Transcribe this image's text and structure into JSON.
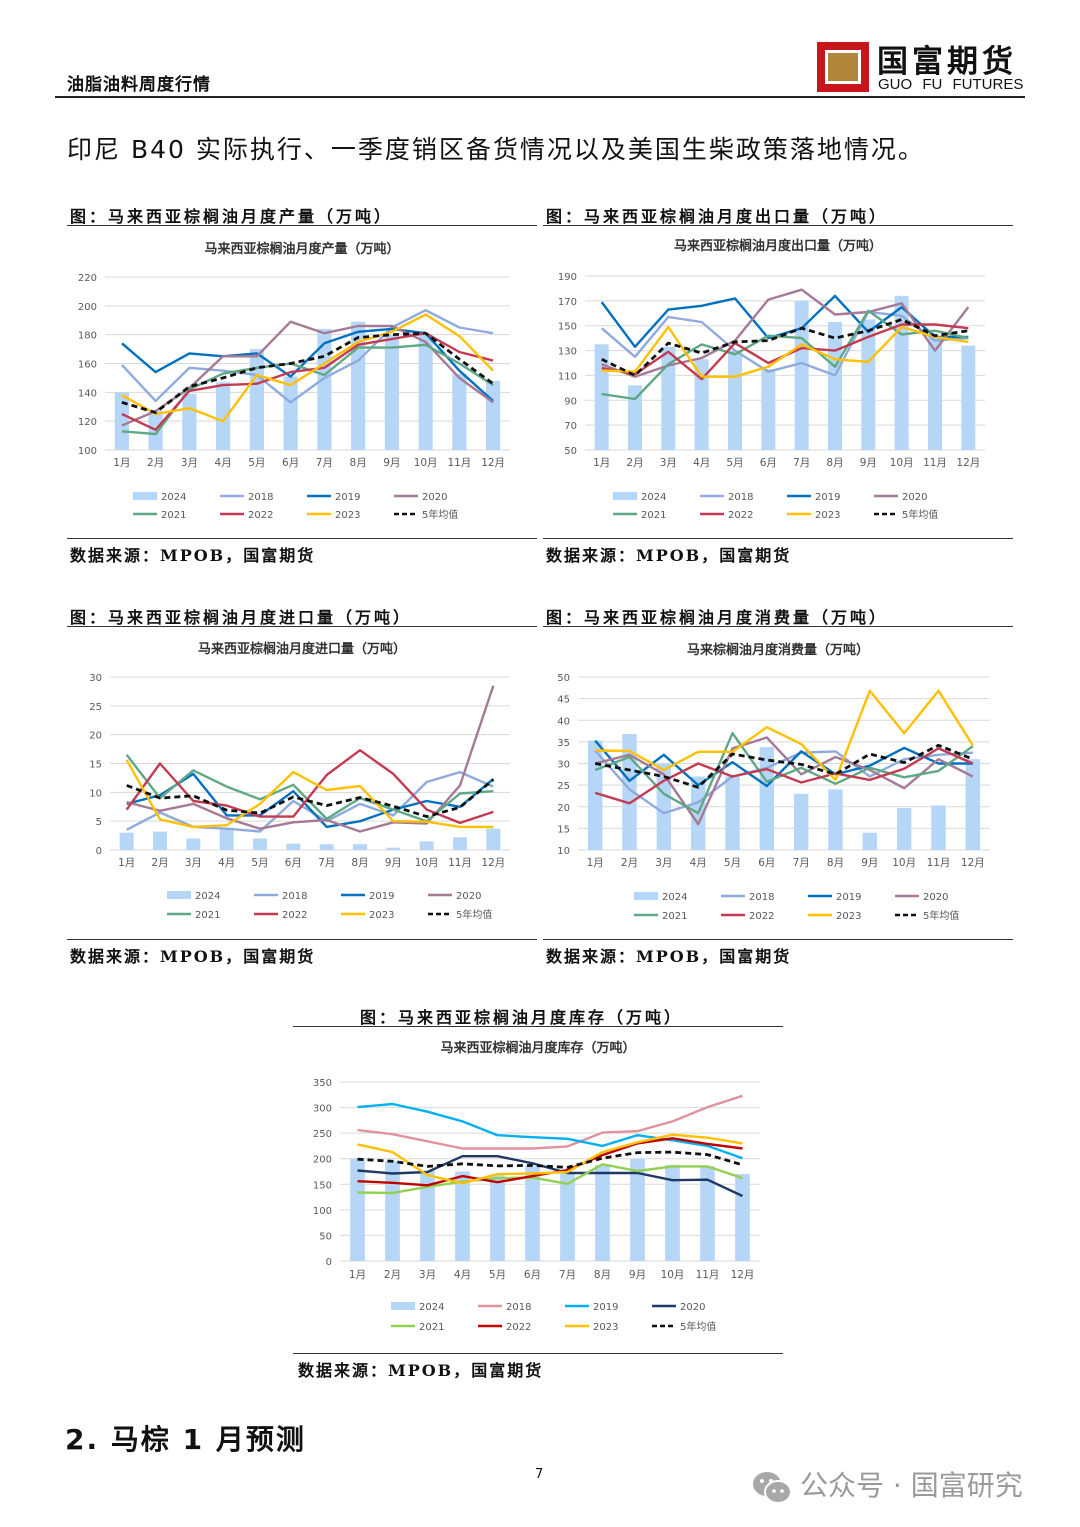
{
  "header": {
    "title": "油脂油料周度行情",
    "logo_cn": "国富期货",
    "logo_en": "GUO  FU  FUTURES"
  },
  "intro_text": "印尼 B40 实际执行、一季度销区备货情况以及美国生柴政策落地情况。",
  "figures": [
    {
      "caption": "图：马来西亚棕榈油月度产量（万吨）",
      "source": "数据来源：MPOB，国富期货"
    },
    {
      "caption": "图：马来西亚棕榈油月度出口量（万吨）",
      "source": "数据来源：MPOB，国富期货"
    },
    {
      "caption": "图：马来西亚棕榈油月度进口量（万吨）",
      "source": "数据来源：MPOB，国富期货"
    },
    {
      "caption": "图：马来西亚棕榈油月度消费量（万吨）",
      "source": "数据来源：MPOB，国富期货"
    },
    {
      "caption": "图：马来西亚棕榈油月度库存（万吨）",
      "source": "数据来源：MPOB，国富期货"
    }
  ],
  "chart_data": [
    {
      "type": "bar+line",
      "title": "马来西亚棕榈油月度产量（万吨）",
      "categories": [
        "1月",
        "2月",
        "3月",
        "4月",
        "5月",
        "6月",
        "7月",
        "8月",
        "9月",
        "10月",
        "11月",
        "12月"
      ],
      "ylim": [
        100,
        220
      ],
      "yticks": [
        100,
        120,
        140,
        160,
        180,
        200,
        220
      ],
      "grid": true,
      "legend": "bottom",
      "colors": {
        "2024": "#b6d6f8",
        "2018": "#8faadc",
        "2019": "#0070c0",
        "2020": "#a57a96",
        "2021": "#5ea884",
        "2022": "#c33b52",
        "2023": "#ffc000",
        "5年均值": "#111111"
      },
      "series": [
        {
          "name": "2024",
          "kind": "bar",
          "values": [
            140,
            127,
            139,
            147,
            170,
            151,
            184,
            189,
            180,
            180,
            153,
            148
          ]
        },
        {
          "name": "2018",
          "kind": "line",
          "values": [
            159,
            134,
            157,
            155,
            152,
            133,
            150,
            162,
            185,
            197,
            185,
            181
          ]
        },
        {
          "name": "2019",
          "kind": "line",
          "values": [
            174,
            154,
            167,
            165,
            167,
            151,
            174,
            182,
            184,
            181,
            155,
            134
          ]
        },
        {
          "name": "2020",
          "kind": "line",
          "values": [
            117,
            127,
            143,
            165,
            165,
            189,
            181,
            186,
            186,
            175,
            150,
            133
          ]
        },
        {
          "name": "2021",
          "kind": "line",
          "values": [
            113,
            111,
            142,
            153,
            157,
            160,
            152,
            171,
            171,
            173,
            160,
            145
          ]
        },
        {
          "name": "2022",
          "kind": "line",
          "values": [
            125,
            114,
            141,
            145,
            146,
            154,
            157,
            173,
            177,
            181,
            168,
            162
          ]
        },
        {
          "name": "2023",
          "kind": "line",
          "values": [
            138,
            125,
            129,
            120,
            152,
            145,
            160,
            175,
            182,
            194,
            179,
            155
          ]
        },
        {
          "name": "5年均值",
          "kind": "dashed",
          "values": [
            133,
            126,
            144,
            150,
            157,
            160,
            165,
            178,
            180,
            181,
            163,
            146
          ]
        }
      ]
    },
    {
      "type": "bar+line",
      "title": "马来西亚棕榈油月度出口量（万吨）",
      "categories": [
        "1月",
        "2月",
        "3月",
        "4月",
        "5月",
        "6月",
        "7月",
        "8月",
        "9月",
        "10月",
        "11月",
        "12月"
      ],
      "ylim": [
        50,
        190
      ],
      "yticks": [
        50,
        70,
        90,
        110,
        130,
        150,
        170,
        190
      ],
      "grid": true,
      "legend": "bottom",
      "colors": {
        "2024": "#b6d6f8",
        "2018": "#8faadc",
        "2019": "#0070c0",
        "2020": "#a57a96",
        "2021": "#5ea884",
        "2022": "#c33b52",
        "2023": "#ffc000",
        "5年均值": "#111111"
      },
      "series": [
        {
          "name": "2024",
          "kind": "bar",
          "values": [
            135,
            102,
            133,
            123,
            130,
            115,
            170,
            153,
            155,
            174,
            140,
            134
          ]
        },
        {
          "name": "2018",
          "kind": "line",
          "values": [
            148,
            125,
            157,
            153,
            130,
            113,
            120,
            110,
            161,
            158,
            138,
            140
          ]
        },
        {
          "name": "2019",
          "kind": "line",
          "values": [
            169,
            133,
            163,
            166,
            172,
            140,
            148,
            174,
            145,
            165,
            141,
            141
          ]
        },
        {
          "name": "2020",
          "kind": "line",
          "values": [
            119,
            109,
            118,
            124,
            138,
            171,
            179,
            159,
            161,
            168,
            130,
            165
          ]
        },
        {
          "name": "2021",
          "kind": "line",
          "values": [
            95,
            91,
            119,
            135,
            127,
            142,
            140,
            117,
            162,
            143,
            146,
            140
          ]
        },
        {
          "name": "2022",
          "kind": "line",
          "values": [
            116,
            111,
            129,
            107,
            136,
            120,
            132,
            130,
            141,
            151,
            151,
            148
          ]
        },
        {
          "name": "2023",
          "kind": "line",
          "values": [
            114,
            113,
            149,
            109,
            109,
            117,
            135,
            123,
            121,
            149,
            141,
            137
          ]
        },
        {
          "name": "5年均值",
          "kind": "dashed",
          "values": [
            123,
            110,
            136,
            128,
            137,
            138,
            148,
            140,
            146,
            155,
            142,
            146
          ]
        }
      ]
    },
    {
      "type": "bar+line",
      "title": "马来西亚棕榈油月度进口量（万吨）",
      "categories": [
        "1月",
        "2月",
        "3月",
        "4月",
        "5月",
        "6月",
        "7月",
        "8月",
        "9月",
        "10月",
        "11月",
        "12月"
      ],
      "ylim": [
        0,
        30
      ],
      "yticks": [
        0,
        5,
        10,
        15,
        20,
        25,
        30
      ],
      "grid": true,
      "legend": "bottom",
      "colors": {
        "2024": "#b6d6f8",
        "2018": "#8faadc",
        "2019": "#0070c0",
        "2020": "#a57a96",
        "2021": "#5ea884",
        "2022": "#c33b52",
        "2023": "#ffc000",
        "5年均值": "#111111"
      },
      "series": [
        {
          "name": "2024",
          "kind": "bar",
          "values": [
            3,
            3.2,
            2,
            3.8,
            2,
            1.1,
            1,
            1,
            0.4,
            1.5,
            2.2,
            3.7
          ]
        },
        {
          "name": "2018",
          "kind": "line",
          "values": [
            3.5,
            6.5,
            4,
            3.7,
            3.2,
            8.5,
            5,
            8,
            6,
            11.8,
            13.5,
            11
          ]
        },
        {
          "name": "2019",
          "kind": "line",
          "values": [
            8,
            9.5,
            13.2,
            6,
            6,
            10.2,
            4,
            5,
            7,
            8.5,
            7.5,
            12.3
          ]
        },
        {
          "name": "2020",
          "kind": "line",
          "values": [
            8.3,
            6.8,
            8,
            5.5,
            3.7,
            4.8,
            5.2,
            3.2,
            4.8,
            4.6,
            11.2,
            28.5
          ]
        },
        {
          "name": "2021",
          "kind": "line",
          "values": [
            16.5,
            9,
            13.8,
            11,
            8.8,
            11.3,
            5.4,
            9,
            7,
            5,
            9.8,
            10.2
          ]
        },
        {
          "name": "2022",
          "kind": "line",
          "values": [
            7,
            15,
            8.5,
            7.7,
            5.8,
            5.8,
            13,
            17.3,
            13.2,
            7,
            4.7,
            6.6
          ]
        },
        {
          "name": "2023",
          "kind": "line",
          "values": [
            15.6,
            5.3,
            4,
            4.3,
            8,
            13.5,
            10.4,
            11.1,
            5,
            4.9,
            4,
            4
          ]
        },
        {
          "name": "5年均值",
          "kind": "dashed",
          "values": [
            11.2,
            9,
            9.4,
            6.9,
            6.4,
            9.2,
            7.7,
            9.1,
            7.6,
            5.8,
            7.4,
            12.2
          ]
        }
      ]
    },
    {
      "type": "bar+line",
      "title": "马来棕榈油月度消费量（万吨）",
      "categories": [
        "1月",
        "2月",
        "3月",
        "4月",
        "5月",
        "6月",
        "7月",
        "8月",
        "9月",
        "10月",
        "11月",
        "12月"
      ],
      "ylim": [
        10,
        50
      ],
      "yticks": [
        10,
        15,
        20,
        25,
        30,
        35,
        40,
        45,
        50
      ],
      "grid": true,
      "legend": "bottom",
      "colors": {
        "2024": "#b6d6f8",
        "2018": "#8faadc",
        "2019": "#0070c0",
        "2020": "#a57a96",
        "2021": "#5ea884",
        "2022": "#c33b52",
        "2023": "#ffc000",
        "5年均值": "#111111"
      },
      "series": [
        {
          "name": "2024",
          "kind": "bar",
          "values": [
            35.3,
            36.8,
            30,
            27,
            27,
            33.8,
            23,
            24,
            14,
            19.7,
            20.3,
            31
          ]
        },
        {
          "name": "2018",
          "kind": "line",
          "values": [
            33,
            24,
            18.5,
            21,
            27,
            29,
            32.5,
            32.8,
            27,
            31,
            32,
            32.5
          ]
        },
        {
          "name": "2019",
          "kind": "line",
          "values": [
            35.3,
            26,
            32,
            25,
            30.3,
            24.8,
            32.8,
            27.5,
            29.5,
            33.6,
            30,
            30
          ]
        },
        {
          "name": "2020",
          "kind": "line",
          "values": [
            30,
            32,
            27.5,
            16,
            33.5,
            36,
            27.5,
            31.5,
            28.5,
            24.3,
            31,
            27
          ]
        },
        {
          "name": "2021",
          "kind": "line",
          "values": [
            28.5,
            31.5,
            23,
            18.5,
            37,
            25.8,
            29,
            25.3,
            29,
            26.8,
            28.3,
            34
          ]
        },
        {
          "name": "2022",
          "kind": "line",
          "values": [
            23.2,
            20.8,
            26,
            30,
            27,
            28.7,
            25.6,
            27.7,
            26.2,
            28.8,
            33.5,
            30
          ]
        },
        {
          "name": "2023",
          "kind": "line",
          "values": [
            33,
            32.9,
            28.5,
            32.7,
            32.7,
            38.4,
            34.5,
            26.2,
            46.8,
            37,
            46.8,
            34.2
          ]
        },
        {
          "name": "5年均值",
          "kind": "dashed",
          "values": [
            30,
            28.5,
            27,
            24.5,
            32.2,
            30.8,
            29.8,
            27.5,
            32.2,
            30.2,
            34.2,
            31
          ]
        }
      ]
    },
    {
      "type": "bar+line",
      "title": "马来西亚棕榈油月度库存（万吨）",
      "categories": [
        "1月",
        "2月",
        "3月",
        "4月",
        "5月",
        "6月",
        "7月",
        "8月",
        "9月",
        "10月",
        "11月",
        "12月"
      ],
      "ylim": [
        0,
        350
      ],
      "yticks": [
        0,
        50,
        100,
        150,
        200,
        250,
        300,
        350
      ],
      "grid": true,
      "legend": "bottom",
      "colors": {
        "2024": "#b6d6f8",
        "2018": "#e0939d",
        "2019": "#00b0f0",
        "2020": "#203864",
        "2021": "#92d050",
        "2022": "#c00000",
        "2023": "#ffc000",
        "5年均值": "#111111"
      },
      "series": [
        {
          "name": "2024",
          "kind": "bar",
          "values": [
            200,
            195,
            176,
            175,
            170,
            185,
            172,
            188,
            200,
            188,
            185,
            170
          ]
        },
        {
          "name": "2018",
          "kind": "line",
          "values": [
            256,
            248,
            234,
            220,
            220,
            220,
            224,
            251,
            254,
            273,
            301,
            323
          ]
        },
        {
          "name": "2019",
          "kind": "line",
          "values": [
            301,
            307,
            292,
            273,
            246,
            242,
            239,
            225,
            246,
            236,
            225,
            201
          ]
        },
        {
          "name": "2020",
          "kind": "line",
          "values": [
            177,
            171,
            174,
            205,
            205,
            191,
            172,
            172,
            172,
            158,
            159,
            127
          ]
        },
        {
          "name": "2021",
          "kind": "line",
          "values": [
            134,
            133,
            145,
            155,
            162,
            163,
            151,
            189,
            176,
            185,
            185,
            162
          ]
        },
        {
          "name": "2022",
          "kind": "line",
          "values": [
            156,
            153,
            148,
            166,
            154,
            166,
            178,
            207,
            230,
            240,
            229,
            220
          ]
        },
        {
          "name": "2023",
          "kind": "line",
          "values": [
            228,
            213,
            168,
            152,
            170,
            171,
            174,
            213,
            232,
            247,
            241,
            230
          ]
        },
        {
          "name": "5年均值",
          "kind": "dashed",
          "values": [
            199,
            195,
            185,
            190,
            186,
            187,
            183,
            201,
            212,
            213,
            208,
            188
          ]
        }
      ]
    }
  ],
  "section_heading": "2. 马棕 1 月预测",
  "page_number": "7",
  "footer_watermark": "公众号 · 国富研究"
}
